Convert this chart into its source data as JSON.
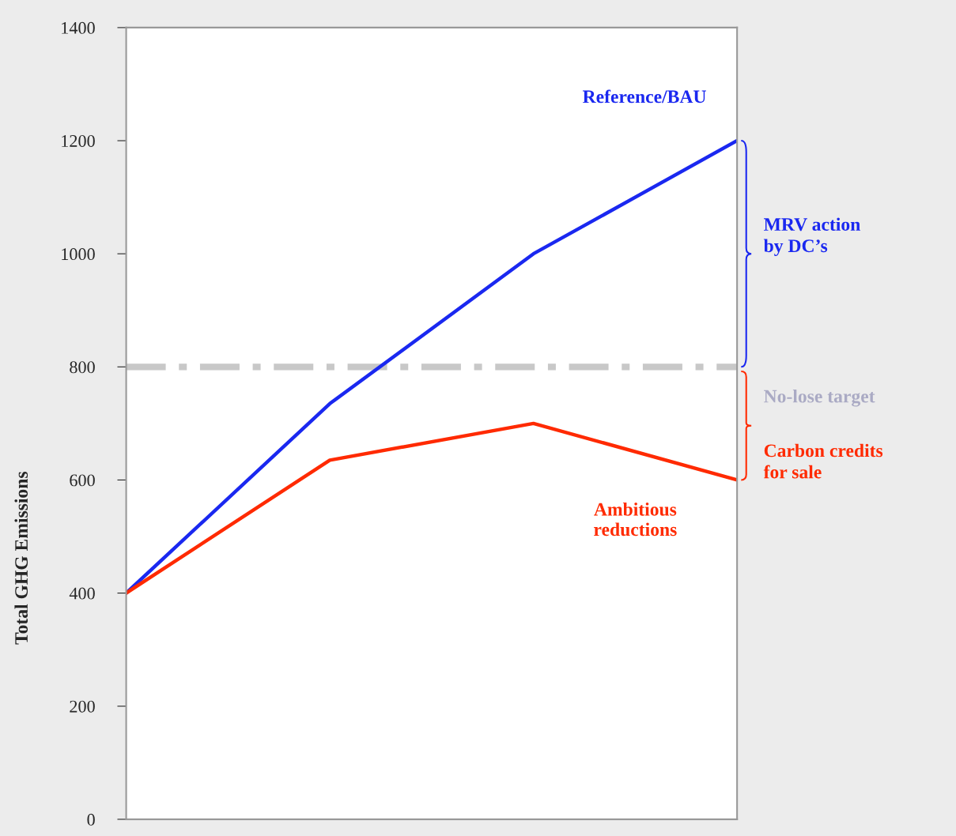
{
  "chart_data": {
    "type": "line",
    "ylabel": "Total GHG Emissions",
    "categories": [
      null,
      null,
      null,
      null
    ],
    "series": [
      {
        "name": "Reference/BAU",
        "color": "#1a28f0",
        "values": [
          400,
          735,
          1000,
          1200
        ]
      },
      {
        "name": "Ambitious reductions",
        "color": "#ff2a00",
        "values": [
          400,
          635,
          700,
          600
        ]
      }
    ],
    "ylim": [
      0,
      1400
    ],
    "yticks": [
      0,
      200,
      400,
      600,
      800,
      1000,
      1200,
      1400
    ],
    "ref_lines": [
      {
        "axis": "y",
        "value": 800,
        "label": "No-lose target",
        "color": "#c8c8c8",
        "line_style": "dashdot"
      }
    ],
    "annotations": [
      "MRV action by DC’s",
      "Carbon credits for sale"
    ],
    "grid": false,
    "legend": false,
    "marker": "none",
    "line_style": "solid",
    "tick_labels": "y"
  }
}
